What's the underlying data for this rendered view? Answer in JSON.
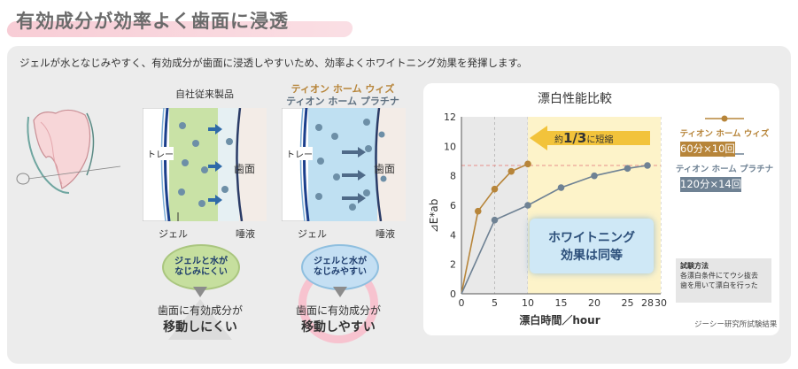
{
  "heading": "有効成分が効率よく歯面に浸透",
  "intro": "ジェルが水となじみやすく、有効成分が歯面に浸透しやすいため、効率よくホワイトニング効果を発揮します。",
  "panels": [
    {
      "title_lines": [
        "自社従来製品"
      ],
      "tray": "トレー",
      "tooth": "歯面",
      "gel": "ジェル",
      "saliva": "唾液",
      "bubble": [
        "ジェルと水が",
        "なじみにくい"
      ],
      "result_top": "歯面に有効成分が",
      "result_bottom": "移動しにくい"
    },
    {
      "title_lines": [
        "ティオン ホーム ウィズ",
        "ティオン ホーム プラチナ"
      ],
      "tray": "トレー",
      "tooth": "歯面",
      "gel": "ジェル",
      "saliva": "唾液",
      "bubble": [
        "ジェルと水が",
        "なじみやすい"
      ],
      "result_top": "歯面に有効成分が",
      "result_bottom": "移動しやすい"
    }
  ],
  "colors": {
    "accent_gold": "#b7853a",
    "accent_slate": "#6f8294",
    "highlight": "#fdf3c9",
    "brush_pink": "#f6c4ce"
  },
  "chart_data": {
    "type": "line",
    "title": "漂白性能比較",
    "xlabel": "漂白時間／hour",
    "ylabel": "⊿E*ab",
    "xlim": [
      0,
      30
    ],
    "ylim": [
      0,
      12
    ],
    "xticks": [
      0,
      5,
      10,
      15,
      20,
      25,
      28,
      30
    ],
    "yticks": [
      0,
      2,
      4,
      6,
      8,
      10,
      12
    ],
    "grid": "vertical dashed",
    "series": [
      {
        "name": "ティオン ホーム ウィズ",
        "dose": "60分×10回",
        "color": "#b7853a",
        "x": [
          0,
          2.5,
          5,
          7.5,
          10
        ],
        "y": [
          0,
          5.6,
          7.1,
          8.3,
          8.8
        ]
      },
      {
        "name": "ティオン ホーム プラチナ",
        "dose": "120分×14回",
        "color": "#6f8294",
        "x": [
          0,
          5,
          10,
          15,
          20,
          25,
          28
        ],
        "y": [
          0,
          5.0,
          6.0,
          7.2,
          8.0,
          8.5,
          8.7
        ]
      }
    ],
    "annotation_arrow": {
      "prefix": "約",
      "value": "1/3",
      "suffix": "に短縮"
    },
    "callout": [
      "ホワイトニング",
      "効果は同等"
    ],
    "method_title": "試験方法",
    "method_text": [
      "各漂白条件にてウシ抜去",
      "歯を用いて漂白を行った"
    ],
    "source": "ジーシー研究所試験結果"
  }
}
